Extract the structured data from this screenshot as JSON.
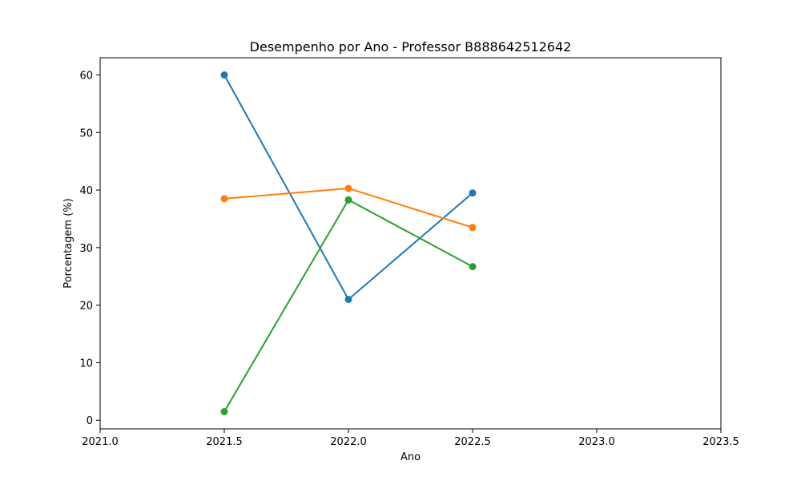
{
  "chart_data": {
    "type": "line",
    "title": "Desempenho por Ano - Professor B888642512642",
    "xlabel": "Ano",
    "ylabel": "Porcentagem (%)",
    "xlim": [
      2021.0,
      2023.5
    ],
    "ylim": [
      -1.5,
      63
    ],
    "x_ticks": [
      2021.0,
      2021.5,
      2022.0,
      2022.5,
      2023.0,
      2023.5
    ],
    "x_tick_labels": [
      "2021.0",
      "2021.5",
      "2022.0",
      "2022.5",
      "2023.0",
      "2023.5"
    ],
    "y_ticks": [
      0,
      10,
      20,
      30,
      40,
      50,
      60
    ],
    "y_tick_labels": [
      "0",
      "10",
      "20",
      "30",
      "40",
      "50",
      "60"
    ],
    "grid": false,
    "legend": "none",
    "x": [
      2021.5,
      2022.0,
      2022.5
    ],
    "series": [
      {
        "color": "#1f77b4",
        "values": [
          60.0,
          21.0,
          39.5
        ]
      },
      {
        "color": "#ff7f0e",
        "values": [
          38.5,
          40.3,
          33.5
        ]
      },
      {
        "color": "#2ca02c",
        "values": [
          1.5,
          38.3,
          26.7
        ]
      }
    ]
  }
}
